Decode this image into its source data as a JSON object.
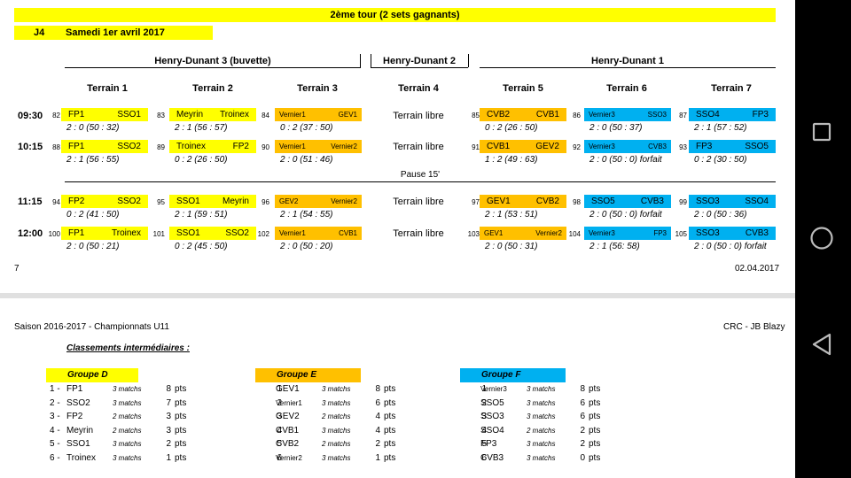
{
  "header": {
    "title": "2ème tour (2 sets gagnants)",
    "day_code": "J4",
    "date": "Samedi 1er avril 2017"
  },
  "venues": [
    "Henry-Dunant 3 (buvette)",
    "Henry-Dunant 2",
    "Henry-Dunant 1"
  ],
  "terrains": [
    "Terrain 1",
    "Terrain 2",
    "Terrain 3",
    "Terrain 4",
    "Terrain 5",
    "Terrain 6",
    "Terrain 7"
  ],
  "free_label": "Terrain libre",
  "pause_label": "Pause 15'",
  "slots": [
    {
      "time": "09:30",
      "matches": [
        {
          "num": "82",
          "home": "FP1",
          "away": "SSO1",
          "score": "2 : 0 (50 : 32)",
          "color": "yellow"
        },
        {
          "num": "83",
          "home": "Meyrin",
          "away": "Troinex",
          "score": "2 : 1 (56 : 57)",
          "color": "yellow"
        },
        {
          "num": "84",
          "home": "Vernier1",
          "away": "GEV1",
          "score": "0 : 2 (37 : 50)",
          "color": "orange"
        },
        null,
        {
          "num": "85",
          "home": "CVB2",
          "away": "CVB1",
          "score": "0 : 2 (26 : 50)",
          "color": "orange"
        },
        {
          "num": "86",
          "home": "Vernier3",
          "away": "SSO3",
          "score": "2 : 0 (50 : 37)",
          "color": "cyan"
        },
        {
          "num": "87",
          "home": "SSO4",
          "away": "FP3",
          "score": "2 : 1 (57 : 52)",
          "color": "cyan"
        }
      ]
    },
    {
      "time": "10:15",
      "matches": [
        {
          "num": "88",
          "home": "FP1",
          "away": "SSO2",
          "score": "2 : 1 (56 : 55)",
          "color": "yellow"
        },
        {
          "num": "89",
          "home": "Troinex",
          "away": "FP2",
          "score": "0 : 2 (26 : 50)",
          "color": "yellow"
        },
        {
          "num": "90",
          "home": "Vernier1",
          "away": "Vernier2",
          "score": "2 : 0 (51 : 46)",
          "color": "orange"
        },
        null,
        {
          "num": "91",
          "home": "CVB1",
          "away": "GEV2",
          "score": "1 : 2 (49 : 63)",
          "color": "orange"
        },
        {
          "num": "92",
          "home": "Vernier3",
          "away": "CVB3",
          "score": "2 : 0 (50 : 0) forfait",
          "color": "cyan"
        },
        {
          "num": "93",
          "home": "FP3",
          "away": "SSO5",
          "score": "0 : 2 (30 : 50)",
          "color": "cyan"
        }
      ]
    },
    {
      "time": "11:15",
      "matches": [
        {
          "num": "94",
          "home": "FP2",
          "away": "SSO2",
          "score": "0 : 2 (41 : 50)",
          "color": "yellow"
        },
        {
          "num": "95",
          "home": "SSO1",
          "away": "Meyrin",
          "score": "2 : 1 (59 : 51)",
          "color": "yellow"
        },
        {
          "num": "96",
          "home": "GEV2",
          "away": "Vernier2",
          "score": "2 : 1 (54 : 55)",
          "color": "orange"
        },
        null,
        {
          "num": "97",
          "home": "GEV1",
          "away": "CVB2",
          "score": "2 : 1 (53 : 51)",
          "color": "orange"
        },
        {
          "num": "98",
          "home": "SSO5",
          "away": "CVB3",
          "score": "2 : 0 (50 : 0) forfait",
          "color": "cyan"
        },
        {
          "num": "99",
          "home": "SSO3",
          "away": "SSO4",
          "score": "2 : 0 (50 : 36)",
          "color": "cyan"
        }
      ]
    },
    {
      "time": "12:00",
      "matches": [
        {
          "num": "100",
          "home": "FP1",
          "away": "Troinex",
          "score": "2 : 0 (50 : 21)",
          "color": "yellow"
        },
        {
          "num": "101",
          "home": "SSO1",
          "away": "SSO2",
          "score": "0 : 2 (45 : 50)",
          "color": "yellow"
        },
        {
          "num": "102",
          "home": "Vernier1",
          "away": "CVB1",
          "score": "2 : 0 (50 : 20)",
          "color": "orange"
        },
        null,
        {
          "num": "103",
          "home": "GEV1",
          "away": "Vernier2",
          "score": "2 : 0 (50 : 31)",
          "color": "orange"
        },
        {
          "num": "104",
          "home": "Vernier3",
          "away": "FP3",
          "score": "2 : 1 (56: 58)",
          "color": "cyan"
        },
        {
          "num": "105",
          "home": "SSO3",
          "away": "CVB3",
          "score": "2 : 0 (50 : 0) forfait",
          "color": "cyan"
        }
      ]
    }
  ],
  "footer": {
    "page": "7",
    "date": "02.04.2017"
  },
  "page2": {
    "season": "Saison 2016-2017 - Championnats U11",
    "author": "CRC - JB Blazy",
    "standings_title": "Classements intermédiaires :",
    "groups": [
      {
        "name": "Groupe D",
        "color": "yellow",
        "rows": [
          {
            "rank": "1 -",
            "team": "FP1",
            "matches": "3 matchs",
            "pts": "8",
            "unit": "pts"
          },
          {
            "rank": "2 -",
            "team": "SSO2",
            "matches": "3 matchs",
            "pts": "7",
            "unit": "pts"
          },
          {
            "rank": "3 -",
            "team": "FP2",
            "matches": "2 matchs",
            "pts": "3",
            "unit": "pts"
          },
          {
            "rank": "4 -",
            "team": "Meyrin",
            "matches": "2 matchs",
            "pts": "3",
            "unit": "pts"
          },
          {
            "rank": "5 -",
            "team": "SSO1",
            "matches": "3 matchs",
            "pts": "2",
            "unit": "pts"
          },
          {
            "rank": "6 -",
            "team": "Troinex",
            "matches": "3 matchs",
            "pts": "1",
            "unit": "pts"
          }
        ]
      },
      {
        "name": "Groupe E",
        "color": "orange",
        "rows": [
          {
            "rank": "1",
            "team": "GEV1",
            "matches": "3 matchs",
            "pts": "8",
            "unit": "pts"
          },
          {
            "rank": "2",
            "team": "Vernier1",
            "matches": "3 matchs",
            "pts": "6",
            "unit": "pts"
          },
          {
            "rank": "3",
            "team": "GEV2",
            "matches": "2 matchs",
            "pts": "4",
            "unit": "pts"
          },
          {
            "rank": "4",
            "team": "CVB1",
            "matches": "3 matchs",
            "pts": "4",
            "unit": "pts"
          },
          {
            "rank": "5",
            "team": "CVB2",
            "matches": "2 matchs",
            "pts": "2",
            "unit": "pts"
          },
          {
            "rank": "6",
            "team": "Vernier2",
            "matches": "3 matchs",
            "pts": "1",
            "unit": "pts"
          }
        ]
      },
      {
        "name": "Groupe F",
        "color": "cyan",
        "rows": [
          {
            "rank": "1",
            "team": "Vernier3",
            "matches": "3 matchs",
            "pts": "8",
            "unit": "pts"
          },
          {
            "rank": "2",
            "team": "SSO5",
            "matches": "3 matchs",
            "pts": "6",
            "unit": "pts"
          },
          {
            "rank": "3",
            "team": "SSO3",
            "matches": "3 matchs",
            "pts": "6",
            "unit": "pts"
          },
          {
            "rank": "4",
            "team": "SSO4",
            "matches": "2 matchs",
            "pts": "2",
            "unit": "pts"
          },
          {
            "rank": "5",
            "team": "FP3",
            "matches": "3 matchs",
            "pts": "2",
            "unit": "pts"
          },
          {
            "rank": "6",
            "team": "CVB3",
            "matches": "3 matchs",
            "pts": "0",
            "unit": "pts"
          }
        ]
      }
    ]
  },
  "colors": {
    "yellow": "#ffff00",
    "orange": "#ffc000",
    "cyan": "#00b0f0"
  },
  "nav": {
    "back": "back-icon",
    "home": "home-icon",
    "recents": "recents-icon"
  }
}
